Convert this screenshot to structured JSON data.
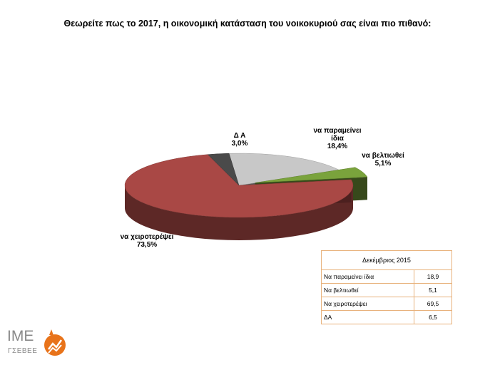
{
  "chart_data": {
    "type": "pie",
    "title": "Θεωρείτε πως το 2017, η οικονομική κατάσταση του νοικοκυριού σας είναι πιο πιθανό:",
    "slices": [
      {
        "label": "να παραμείνει ίδια",
        "value": 18.4,
        "display": "18,4%",
        "color": "#c8c8c8"
      },
      {
        "label": "να βελτιωθεί",
        "value": 5.1,
        "display": "5,1%",
        "color": "#7aa33c"
      },
      {
        "label": "να χειροτερέψει",
        "value": 73.5,
        "display": "73,5%",
        "color": "#a94845"
      },
      {
        "label": "Δ Α",
        "value": 3.0,
        "display": "3,0%",
        "color": "#4a4a4a"
      }
    ]
  },
  "table": {
    "title": "Δεκέμβριος 2015",
    "rows": [
      {
        "label": "Να παραμείνει ίδια",
        "value": "18,9"
      },
      {
        "label": "Να βελτιωθεί",
        "value": "5,1"
      },
      {
        "label": "Να χειροτερέψει",
        "value": "69,5"
      },
      {
        "label": "ΔΑ",
        "value": "6,5"
      }
    ]
  },
  "logo": {
    "main": "ΙΜΕ",
    "sub": "ΓΣΕΒΕΕ",
    "brand_color": "#e8731a"
  }
}
